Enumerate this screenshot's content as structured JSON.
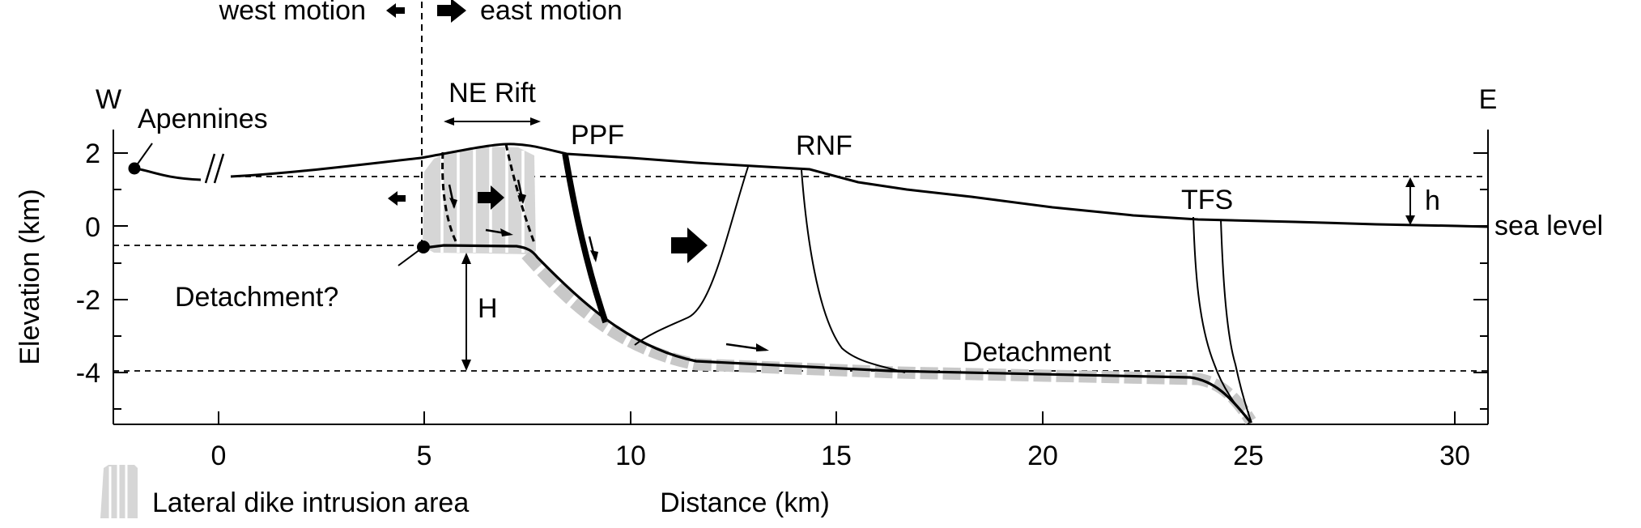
{
  "header": {
    "west_motion": "west motion",
    "east_motion": "east motion"
  },
  "labels": {
    "W": "W",
    "E": "E",
    "apennines": "Apennines",
    "ne_rift": "NE Rift",
    "ppf": "PPF",
    "rnf": "RNF",
    "tfs": "TFS",
    "h_small": "h",
    "sea_level": "sea level",
    "detachment_q": "Detachment?",
    "H_big": "H",
    "detachment": "Detachment"
  },
  "axes": {
    "ylabel": "Elevation (km)",
    "xlabel": "Distance (km)",
    "y_ticks": [
      "2",
      "0",
      "-2",
      "-4"
    ],
    "x_ticks": [
      "0",
      "5",
      "10",
      "15",
      "20",
      "25",
      "30"
    ],
    "x_range_km": [
      -2.5,
      31
    ],
    "y_range_km": [
      -5.3,
      2.7
    ]
  },
  "legend": {
    "label": "Lateral dike intrusion area"
  },
  "colors": {
    "ink": "#000000",
    "dike_gray": "#cfcfcf",
    "band_gray": "#c8c8c8"
  }
}
